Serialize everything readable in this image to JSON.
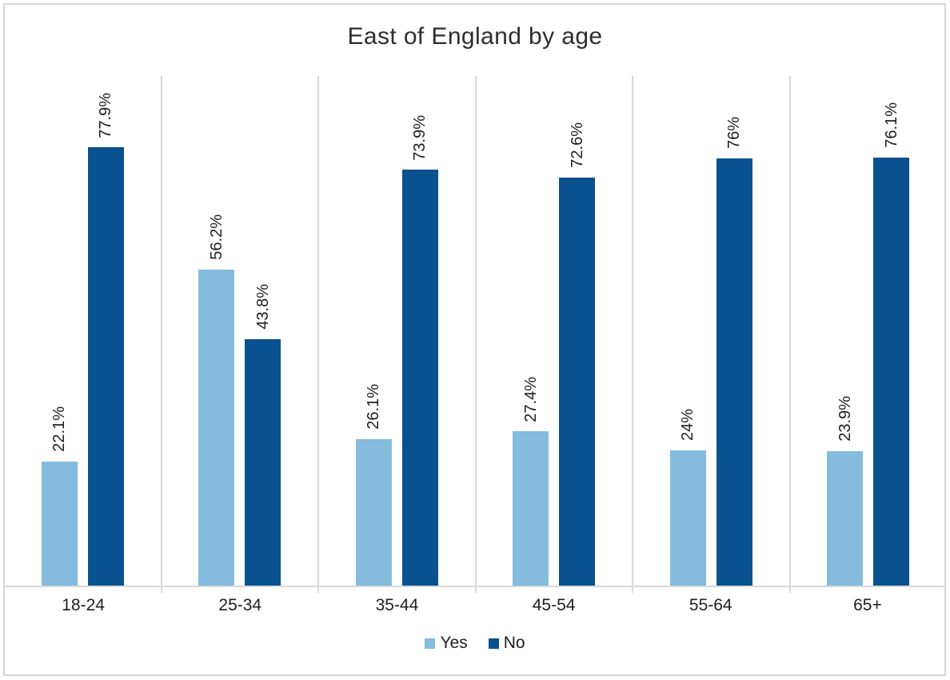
{
  "chart_data": {
    "type": "bar",
    "title": "East of England by age",
    "categories": [
      "18-24",
      "25-34",
      "35-44",
      "45-54",
      "55-64",
      "65+"
    ],
    "series": [
      {
        "name": "Yes",
        "color": "#85BBDD",
        "values": [
          22.1,
          56.2,
          26.1,
          27.4,
          24,
          23.9
        ],
        "labels": [
          "22.1%",
          "56.2%",
          "26.1%",
          "27.4%",
          "24%",
          "23.9%"
        ]
      },
      {
        "name": "No",
        "color": "#0A5190",
        "values": [
          77.9,
          43.8,
          73.9,
          72.6,
          76,
          76.1
        ],
        "labels": [
          "77.9%",
          "43.8%",
          "73.9%",
          "72.6%",
          "76%",
          "76.1%"
        ]
      }
    ],
    "ylim": [
      0,
      90.6
    ],
    "y_axis_visible": false,
    "grid": "vertical-category-separators",
    "data_label_rotation": -90,
    "legend_position": "bottom-center",
    "axis_color": "#D9D9D9",
    "frame_border_color": "#D7D7D9"
  }
}
